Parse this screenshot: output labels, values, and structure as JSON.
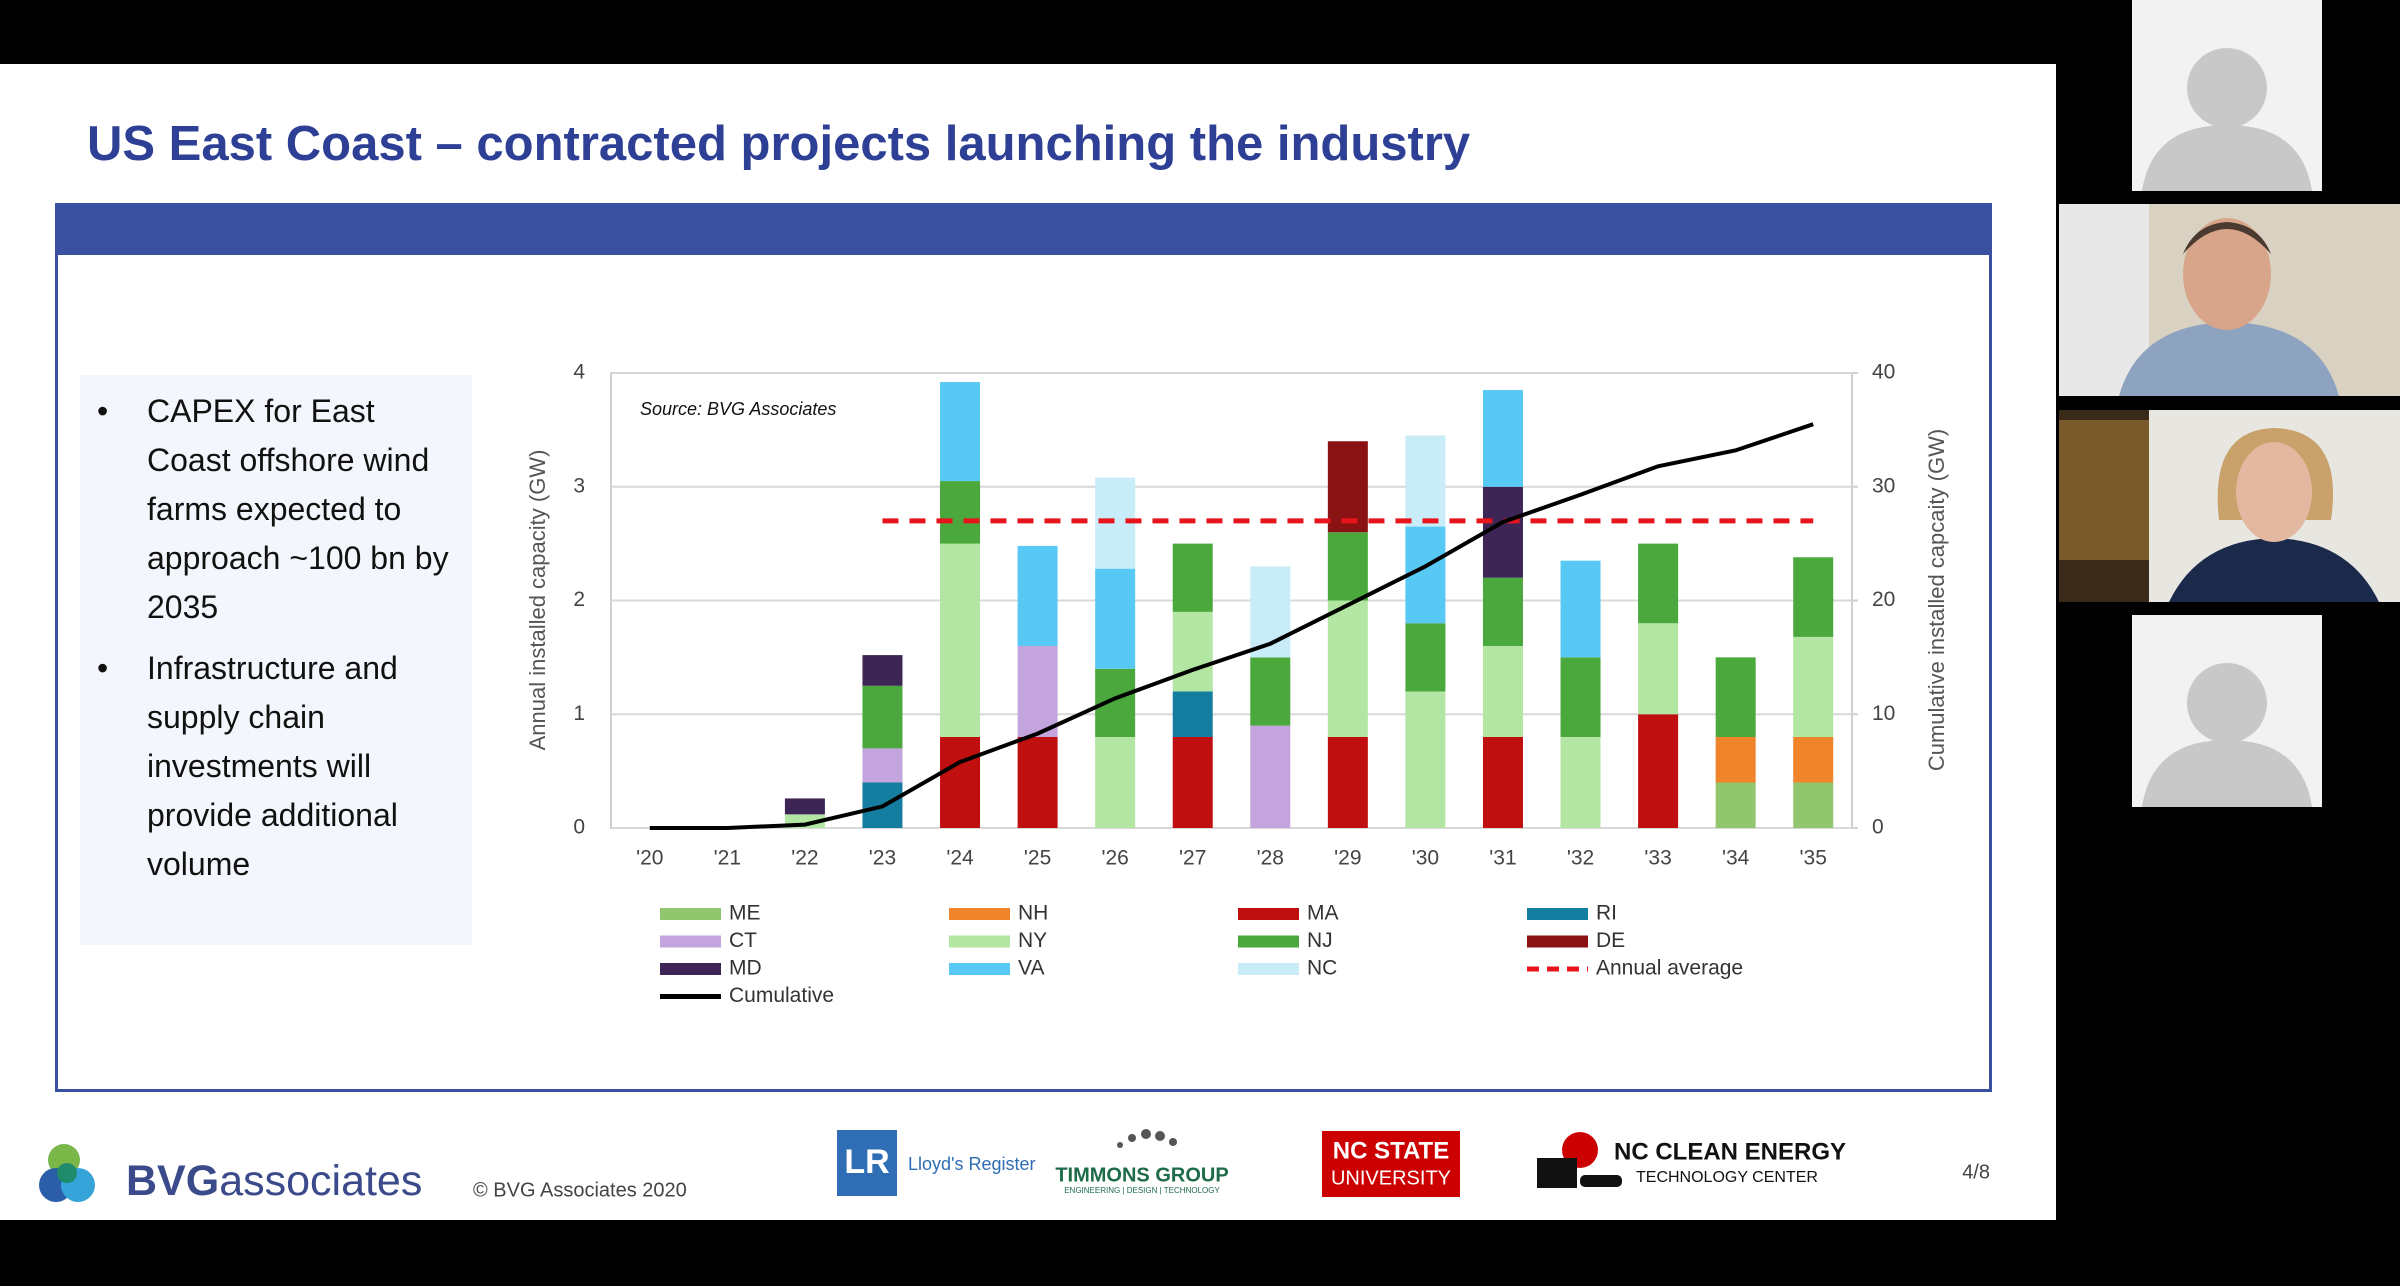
{
  "slide": {
    "title": "US East Coast – contracted projects launching the industry",
    "bullets": [
      "CAPEX for East Coast offshore wind farms expected to approach ~100 bn by 2035",
      "Infrastructure and supply chain investments will provide additional volume"
    ],
    "footer": {
      "brand_bold": "BVG",
      "brand_light": "associates",
      "copyright": "© BVG Associates 2020",
      "page": "4/8",
      "logos": {
        "lloyds": "Lloyd's Register",
        "lr": "LR",
        "timmons": "TIMMONS GROUP",
        "timmons_sub": "ENGINEERING | DESIGN | TECHNOLOGY",
        "ncstate_1": "NC STATE",
        "ncstate_2": "UNIVERSITY",
        "ncclean_1": "NC CLEAN ENERGY",
        "ncclean_2": "TECHNOLOGY CENTER"
      }
    }
  },
  "chart_data": {
    "type": "bar",
    "stacked": true,
    "grid": true,
    "annotation": "Source: BVG Associates",
    "y_label": "Annual installed capacity (GW)",
    "y2_label": "Cumulative installed capcaity (GW)",
    "categories": [
      "'20",
      "'21",
      "'22",
      "'23",
      "'24",
      "'25",
      "'26",
      "'27",
      "'28",
      "'29",
      "'30",
      "'31",
      "'32",
      "'33",
      "'34",
      "'35"
    ],
    "ylim": [
      0,
      4
    ],
    "yticks": [
      0,
      1,
      2,
      3,
      4
    ],
    "y2lim": [
      0,
      40
    ],
    "y2ticks": [
      0,
      10,
      20,
      30,
      40
    ],
    "series": [
      {
        "name": "ME",
        "color": "#92c66e",
        "values": [
          null,
          null,
          null,
          null,
          null,
          null,
          null,
          null,
          null,
          null,
          null,
          null,
          null,
          null,
          0.4,
          0.4
        ]
      },
      {
        "name": "NH",
        "color": "#f0842a",
        "values": [
          null,
          null,
          null,
          null,
          null,
          null,
          null,
          null,
          null,
          null,
          null,
          null,
          null,
          null,
          0.4,
          0.4
        ]
      },
      {
        "name": "MA",
        "color": "#c00f0f",
        "values": [
          null,
          null,
          null,
          null,
          0.8,
          0.8,
          null,
          0.8,
          null,
          0.8,
          null,
          0.8,
          null,
          1.0,
          null,
          null
        ]
      },
      {
        "name": "RI",
        "color": "#157ea0",
        "values": [
          null,
          null,
          null,
          0.4,
          null,
          null,
          null,
          0.4,
          null,
          null,
          null,
          null,
          null,
          null,
          null,
          null
        ]
      },
      {
        "name": "CT",
        "color": "#c4a4dc",
        "values": [
          null,
          null,
          null,
          0.3,
          null,
          0.8,
          null,
          null,
          0.9,
          null,
          null,
          null,
          null,
          null,
          null,
          null
        ]
      },
      {
        "name": "NY",
        "color": "#b2e6a2",
        "values": [
          null,
          null,
          0.12,
          null,
          1.7,
          null,
          0.8,
          0.7,
          null,
          1.2,
          1.2,
          0.8,
          0.8,
          0.8,
          null,
          0.88
        ]
      },
      {
        "name": "NJ",
        "color": "#4aa83c",
        "values": [
          null,
          null,
          null,
          0.55,
          0.55,
          null,
          0.6,
          0.6,
          0.6,
          0.6,
          0.6,
          0.6,
          0.7,
          0.7,
          0.7,
          0.7
        ]
      },
      {
        "name": "DE",
        "color": "#8b1212",
        "values": [
          null,
          null,
          null,
          null,
          null,
          null,
          null,
          null,
          null,
          0.8,
          null,
          null,
          null,
          null,
          null,
          null
        ]
      },
      {
        "name": "MD",
        "color": "#3d2656",
        "values": [
          null,
          null,
          0.14,
          0.27,
          null,
          null,
          null,
          null,
          null,
          null,
          null,
          0.8,
          null,
          null,
          null,
          null
        ]
      },
      {
        "name": "VA",
        "color": "#58c8f4",
        "values": [
          null,
          null,
          null,
          null,
          0.87,
          0.88,
          0.88,
          null,
          null,
          null,
          0.85,
          0.85,
          0.85,
          null,
          null,
          null
        ]
      },
      {
        "name": "NC",
        "color": "#c8ecf8",
        "values": [
          null,
          null,
          null,
          null,
          null,
          null,
          0.8,
          null,
          0.8,
          null,
          0.8,
          null,
          null,
          null,
          null,
          null
        ]
      },
      {
        "name": "Annual average",
        "type": "line",
        "style": "dashed",
        "color": "#e8141c",
        "values": [
          null,
          null,
          null,
          2.7,
          2.7,
          2.7,
          2.7,
          2.7,
          2.7,
          2.7,
          2.7,
          2.7,
          2.7,
          2.7,
          2.7,
          2.7
        ]
      },
      {
        "name": "Cumulative",
        "type": "line",
        "axis": "y2",
        "color": "#000000",
        "values": [
          0,
          0,
          0.3,
          1.9,
          5.8,
          8.3,
          11.4,
          13.9,
          16.2,
          19.6,
          23.0,
          26.9,
          29.3,
          31.8,
          33.2,
          35.5
        ]
      }
    ]
  }
}
